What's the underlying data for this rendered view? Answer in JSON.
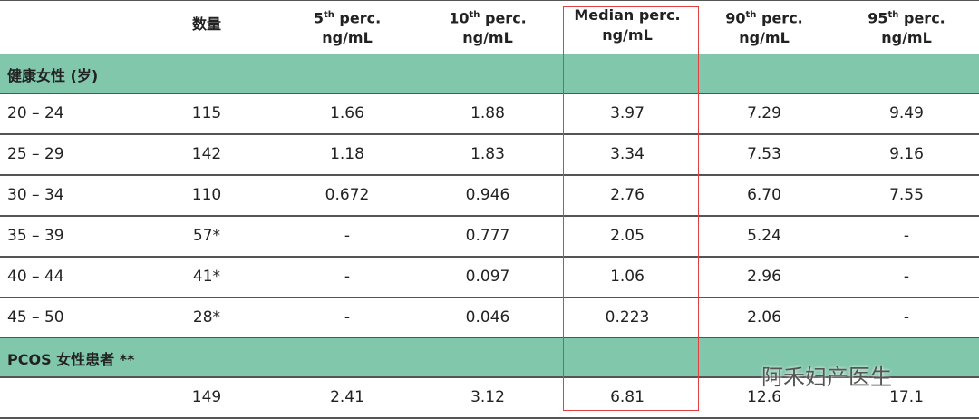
{
  "header": {
    "cells": [
      {
        "base": "数量"
      },
      {
        "base": "5",
        "sup": "th",
        "rest": " perc.",
        "unit": "ng/mL"
      },
      {
        "base": "10",
        "sup": "th",
        "rest": " perc.",
        "unit": "ng/mL"
      },
      {
        "base": "Median perc.",
        "unit": "ng/mL"
      },
      {
        "base": "90",
        "sup": "th",
        "rest": " perc.",
        "unit": "ng/mL"
      },
      {
        "base": "95",
        "sup": "th",
        "rest": " perc.",
        "unit": "ng/mL"
      }
    ]
  },
  "sections": [
    {
      "title": "健康女性 (岁)",
      "rows": [
        [
          "20 – 24",
          "115",
          "1.66",
          "1.88",
          "3.97",
          "7.29",
          "9.49"
        ],
        [
          "25 – 29",
          "142",
          "1.18",
          "1.83",
          "3.34",
          "7.53",
          "9.16"
        ],
        [
          "30 – 34",
          "110",
          "0.672",
          "0.946",
          "2.76",
          "6.70",
          "7.55"
        ],
        [
          "35 – 39",
          "57*",
          "-",
          "0.777",
          "2.05",
          "5.24",
          "-"
        ],
        [
          "40 – 44",
          "41*",
          "-",
          "0.097",
          "1.06",
          "2.96",
          "-"
        ],
        [
          "45 – 50",
          "28*",
          "-",
          "0.046",
          "0.223",
          "2.06",
          "-"
        ]
      ]
    },
    {
      "title": "PCOS 女性患者 **",
      "rows": [
        [
          null,
          "149",
          "2.41",
          "3.12",
          "6.81",
          "12.6",
          "17.1"
        ]
      ]
    }
  ],
  "watermark": "阿禾妇产医生"
}
